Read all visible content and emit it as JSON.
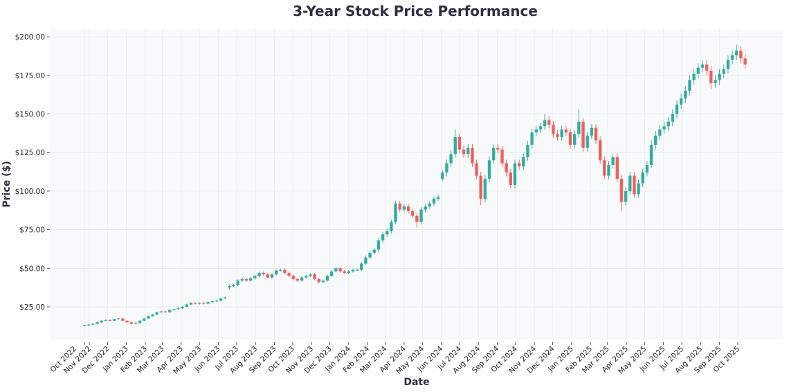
{
  "chart_data": {
    "type": "candlestick",
    "title": "3-Year Stock Price Performance",
    "xlabel": "Date",
    "ylabel": "Price ($)",
    "ylim": [
      3.9,
      205
    ],
    "grid": true,
    "legend": "none",
    "colors": {
      "up": "#26a69a",
      "down": "#ef5350",
      "background": "#f8f9fa",
      "title": "#2d2d44"
    },
    "yticks": [
      25,
      50,
      75,
      100,
      125,
      150,
      175,
      200
    ],
    "ytick_labels": [
      "$25.00",
      "$50.00",
      "$75.00",
      "$100.00",
      "$125.00",
      "$150.00",
      "$175.00",
      "$200.00"
    ],
    "xticks": [
      {
        "date": "2022-10-24",
        "label": "Oct 2022"
      },
      {
        "date": "2022-11-01",
        "label": "Nov 2022"
      },
      {
        "date": "2022-12-01",
        "label": "Dec 2022"
      },
      {
        "date": "2023-01-01",
        "label": "Jan 2023"
      },
      {
        "date": "2023-02-01",
        "label": "Feb 2023"
      },
      {
        "date": "2023-03-01",
        "label": "Mar 2023"
      },
      {
        "date": "2023-04-01",
        "label": "Apr 2023"
      },
      {
        "date": "2023-05-01",
        "label": "May 2023"
      },
      {
        "date": "2023-06-01",
        "label": "Jun 2023"
      },
      {
        "date": "2023-07-01",
        "label": "Jul 2023"
      },
      {
        "date": "2023-08-01",
        "label": "Aug 2023"
      },
      {
        "date": "2023-09-01",
        "label": "Sep 2023"
      },
      {
        "date": "2023-10-01",
        "label": "Oct 2023"
      },
      {
        "date": "2023-11-01",
        "label": "Nov 2023"
      },
      {
        "date": "2023-12-01",
        "label": "Dec 2023"
      },
      {
        "date": "2024-01-01",
        "label": "Jan 2024"
      },
      {
        "date": "2024-02-01",
        "label": "Feb 2024"
      },
      {
        "date": "2024-03-01",
        "label": "Mar 2024"
      },
      {
        "date": "2024-04-01",
        "label": "Apr 2024"
      },
      {
        "date": "2024-05-01",
        "label": "May 2024"
      },
      {
        "date": "2024-06-01",
        "label": "Jun 2024"
      },
      {
        "date": "2024-07-01",
        "label": "Jul 2024"
      },
      {
        "date": "2024-08-01",
        "label": "Aug 2024"
      },
      {
        "date": "2024-09-01",
        "label": "Sep 2024"
      },
      {
        "date": "2024-10-01",
        "label": "Oct 2024"
      },
      {
        "date": "2024-11-01",
        "label": "Nov 2024"
      },
      {
        "date": "2024-12-01",
        "label": "Dec 2024"
      },
      {
        "date": "2025-01-01",
        "label": "Jan 2025"
      },
      {
        "date": "2025-02-01",
        "label": "Feb 2025"
      },
      {
        "date": "2025-03-01",
        "label": "Mar 2025"
      },
      {
        "date": "2025-04-01",
        "label": "Apr 2025"
      },
      {
        "date": "2025-05-01",
        "label": "May 2025"
      },
      {
        "date": "2025-06-01",
        "label": "Jun 2025"
      },
      {
        "date": "2025-07-01",
        "label": "Jul 2025"
      },
      {
        "date": "2025-08-01",
        "label": "Aug 2025"
      },
      {
        "date": "2025-09-01",
        "label": "Sep 2025"
      },
      {
        "date": "2025-10-01",
        "label": "Oct 2025"
      }
    ],
    "start_date": "2022-10-24",
    "interval_days": 7,
    "ohlc_fields": [
      "open",
      "high",
      "low",
      "close"
    ],
    "ohlc": [
      [
        12.6,
        13.4,
        12.2,
        13
      ],
      [
        13,
        13.9,
        12.6,
        13.5
      ],
      [
        13.5,
        14.4,
        13.1,
        14
      ],
      [
        14,
        15.4,
        13.6,
        15
      ],
      [
        15,
        16.4,
        14.6,
        16
      ],
      [
        16,
        16.9,
        15.6,
        16.5
      ],
      [
        16.5,
        16.9,
        15.6,
        16
      ],
      [
        16,
        17.4,
        15.6,
        17
      ],
      [
        17,
        17.9,
        16.6,
        17.5
      ],
      [
        17.5,
        17.9,
        15.6,
        16
      ],
      [
        16,
        16.4,
        14.6,
        15
      ],
      [
        15,
        15.4,
        13.6,
        14
      ],
      [
        14,
        14.9,
        13.6,
        14.5
      ],
      [
        14.5,
        16.4,
        14.1,
        16
      ],
      [
        16,
        17.9,
        15.6,
        17.5
      ],
      [
        17.5,
        19.4,
        17.1,
        19
      ],
      [
        19,
        20.4,
        18.6,
        20
      ],
      [
        20,
        21.9,
        19.6,
        21.5
      ],
      [
        21.5,
        22.5,
        21,
        22
      ],
      [
        22,
        22.5,
        21,
        21.5
      ],
      [
        21.5,
        23.5,
        21,
        23
      ],
      [
        23,
        24,
        22.5,
        23.5
      ],
      [
        23.5,
        24.5,
        23,
        24
      ],
      [
        24,
        25.5,
        23.5,
        25
      ],
      [
        25,
        27,
        24.5,
        26.5
      ],
      [
        26.5,
        28,
        26,
        27.5
      ],
      [
        27.5,
        28,
        26.5,
        27
      ],
      [
        27,
        28,
        26.5,
        27.5
      ],
      [
        27.5,
        28,
        26.5,
        27
      ],
      [
        27,
        28.5,
        26.5,
        28
      ],
      [
        28,
        29,
        27.5,
        28.5
      ],
      [
        28.5,
        29.5,
        28,
        29
      ],
      [
        29,
        31,
        28.5,
        30.5
      ],
      [
        30.5,
        31.5,
        30,
        31
      ],
      [
        37.5,
        39.5,
        36.5,
        38.5
      ],
      [
        38.5,
        39.8,
        37.7,
        39
      ],
      [
        39,
        42.8,
        38.2,
        42
      ],
      [
        42,
        43.8,
        41.2,
        43
      ],
      [
        43,
        43.8,
        41.2,
        42
      ],
      [
        42,
        44.3,
        41.2,
        43.5
      ],
      [
        43.5,
        45.8,
        42.7,
        45
      ],
      [
        45,
        47.8,
        44.2,
        47
      ],
      [
        47,
        47.8,
        45.2,
        46
      ],
      [
        46,
        46.8,
        43.2,
        44
      ],
      [
        44,
        46.8,
        43.2,
        46
      ],
      [
        46,
        49.3,
        45.2,
        48.5
      ],
      [
        48.5,
        49.8,
        47.7,
        49
      ],
      [
        49,
        49.8,
        46.2,
        47
      ],
      [
        47,
        47.8,
        44.2,
        45
      ],
      [
        45,
        45.8,
        42.2,
        43
      ],
      [
        43,
        43.8,
        41.2,
        42
      ],
      [
        42,
        44.8,
        41.2,
        44
      ],
      [
        44,
        45.8,
        43.2,
        45
      ],
      [
        45,
        46.8,
        44.2,
        46
      ],
      [
        46,
        46.8,
        42.2,
        43
      ],
      [
        43,
        43.8,
        40.2,
        41
      ],
      [
        41,
        42.8,
        40.2,
        42
      ],
      [
        42,
        45.8,
        41.2,
        45
      ],
      [
        45,
        48.8,
        44.2,
        48
      ],
      [
        48,
        50.8,
        47.2,
        50
      ],
      [
        50,
        50.8,
        47.2,
        48
      ],
      [
        48,
        48.8,
        46.2,
        47
      ],
      [
        47,
        48.8,
        46.2,
        48
      ],
      [
        48,
        49.8,
        47.2,
        49
      ],
      [
        49,
        49.8,
        48.2,
        49
      ],
      [
        49,
        54.2,
        48,
        53
      ],
      [
        53,
        58.2,
        52,
        57
      ],
      [
        57,
        61.2,
        56,
        60
      ],
      [
        60,
        63.2,
        59,
        62
      ],
      [
        62,
        69.6,
        60.4,
        68
      ],
      [
        68,
        73.6,
        66.4,
        72
      ],
      [
        72,
        75.6,
        70.4,
        74
      ],
      [
        74,
        81.6,
        72.4,
        80
      ],
      [
        80,
        93.6,
        78.4,
        92
      ],
      [
        92,
        93.6,
        86.4,
        88
      ],
      [
        88,
        91.6,
        86.4,
        90
      ],
      [
        90,
        91.6,
        85.4,
        87
      ],
      [
        87,
        88.6,
        82.4,
        84
      ],
      [
        84,
        85.6,
        76.4,
        80
      ],
      [
        80,
        89.6,
        78.4,
        88
      ],
      [
        88,
        91.6,
        86.4,
        90
      ],
      [
        90,
        93.6,
        88.4,
        92
      ],
      [
        92,
        96.6,
        90.4,
        95
      ],
      [
        95,
        97.6,
        93.4,
        96
      ],
      [
        108,
        113.6,
        106.4,
        112
      ],
      [
        112,
        120.4,
        109.6,
        118
      ],
      [
        118,
        126.4,
        115.6,
        124
      ],
      [
        124,
        140,
        121.6,
        135
      ],
      [
        135,
        137.4,
        124.6,
        127
      ],
      [
        127,
        129.4,
        121.6,
        124
      ],
      [
        124,
        130.4,
        121.6,
        128
      ],
      [
        128,
        130.4,
        115.6,
        118
      ],
      [
        118,
        120.4,
        107.6,
        110
      ],
      [
        110,
        112.4,
        91,
        95
      ],
      [
        95,
        110.4,
        92.6,
        108
      ],
      [
        108,
        122.4,
        105.6,
        120
      ],
      [
        120,
        130.4,
        117.6,
        128
      ],
      [
        128,
        130.4,
        124.6,
        127
      ],
      [
        127,
        129.4,
        115.6,
        118
      ],
      [
        118,
        120.4,
        109.6,
        112
      ],
      [
        112,
        114.4,
        101.6,
        104
      ],
      [
        104,
        120.4,
        101.6,
        118
      ],
      [
        118,
        120.4,
        113.6,
        116
      ],
      [
        116,
        124.4,
        113.6,
        122
      ],
      [
        122,
        132.4,
        119.6,
        130
      ],
      [
        130,
        140.4,
        127.6,
        138
      ],
      [
        138,
        142.4,
        135.6,
        140
      ],
      [
        140,
        144.4,
        137.6,
        142
      ],
      [
        142,
        150,
        139.6,
        146
      ],
      [
        146,
        148.4,
        140.6,
        143
      ],
      [
        143,
        145.4,
        134.6,
        137
      ],
      [
        137,
        139.4,
        132.6,
        135
      ],
      [
        135,
        142.4,
        132.6,
        140
      ],
      [
        140,
        142.4,
        135.6,
        138
      ],
      [
        138,
        140.4,
        127.6,
        130
      ],
      [
        130,
        139.4,
        127.6,
        137
      ],
      [
        137,
        153,
        134.6,
        145
      ],
      [
        145,
        147.4,
        125.6,
        128
      ],
      [
        128,
        138.4,
        125.6,
        136
      ],
      [
        136,
        143.4,
        133.6,
        141
      ],
      [
        141,
        143.4,
        130.6,
        133
      ],
      [
        133,
        135.4,
        117.6,
        120
      ],
      [
        120,
        122.4,
        107.6,
        110
      ],
      [
        110,
        119.4,
        107.6,
        117
      ],
      [
        117,
        124.4,
        114.6,
        122
      ],
      [
        122,
        124.4,
        105.6,
        108
      ],
      [
        108,
        110.4,
        87,
        93
      ],
      [
        93,
        102.4,
        90.6,
        100
      ],
      [
        100,
        112.4,
        97.6,
        110
      ],
      [
        110,
        112.4,
        95.6,
        98
      ],
      [
        98,
        107.4,
        95.6,
        105
      ],
      [
        105,
        114.4,
        102.6,
        112
      ],
      [
        112,
        119.4,
        109.6,
        117
      ],
      [
        117,
        133,
        115,
        130
      ],
      [
        130,
        139,
        127,
        136
      ],
      [
        136,
        143,
        133,
        140
      ],
      [
        140,
        145,
        137,
        142
      ],
      [
        142,
        148,
        139,
        145
      ],
      [
        145,
        153,
        142,
        150
      ],
      [
        150,
        159,
        147,
        156
      ],
      [
        156,
        163,
        153,
        160
      ],
      [
        160,
        168,
        157,
        165
      ],
      [
        165,
        175,
        162,
        172
      ],
      [
        172,
        179,
        169,
        176
      ],
      [
        176,
        183,
        173,
        180
      ],
      [
        180,
        185,
        177,
        182
      ],
      [
        182,
        185,
        175,
        178
      ],
      [
        178,
        181,
        166,
        170
      ],
      [
        170,
        175,
        167,
        172
      ],
      [
        172,
        179,
        169,
        176
      ],
      [
        176,
        182,
        173,
        179
      ],
      [
        179,
        188,
        176,
        185
      ],
      [
        185,
        191,
        182,
        188
      ],
      [
        188,
        195,
        185,
        191
      ],
      [
        191,
        194,
        183,
        186
      ],
      [
        186,
        189,
        179,
        182
      ]
    ]
  }
}
